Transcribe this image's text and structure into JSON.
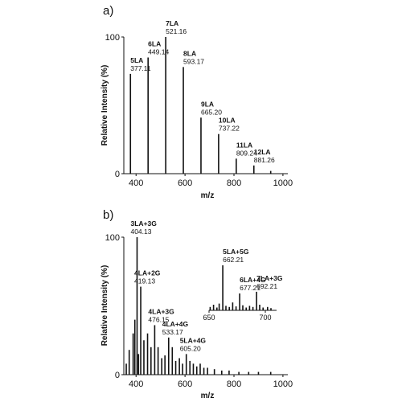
{
  "chart_data": [
    {
      "type": "stem",
      "panel_label": "a)",
      "y_label": "Relative Intensity (%)",
      "x_label": "m/z",
      "x": [
        377.11,
        449.14,
        521.16,
        593.17,
        665.2,
        737.22,
        809.24,
        881.26,
        950
      ],
      "values": [
        73,
        85,
        100,
        78,
        41,
        29,
        11,
        6,
        2
      ],
      "labels": [
        "5LA",
        "6LA",
        "7LA",
        "8LA",
        "9LA",
        "10LA",
        "11LA",
        "12LA",
        null
      ],
      "x_labels": [
        "377.11",
        "449.14",
        "521.16",
        "593.17",
        "665.20",
        "737.22",
        "809.24",
        "881.26",
        null
      ],
      "color": "#111111",
      "xlim": [
        350,
        1020
      ],
      "ylim": [
        0,
        100
      ],
      "xticks": [
        400,
        600,
        800,
        1000
      ],
      "yticks": [
        0,
        100
      ]
    },
    {
      "type": "stem",
      "panel_label": "b)",
      "y_label": "Relative Intensity (%)",
      "x_label": "m/z",
      "x": [
        360,
        372,
        388,
        395,
        404.13,
        410,
        419.13,
        432,
        447,
        461,
        476.15,
        490,
        505,
        518,
        533.17,
        548,
        562,
        577,
        590,
        605.2,
        620,
        634,
        648,
        662,
        677,
        692,
        720,
        750,
        780,
        820,
        860,
        900,
        950
      ],
      "values": [
        8,
        18,
        30,
        40,
        100,
        15,
        64,
        25,
        30,
        20,
        36,
        20,
        12,
        14,
        27,
        20,
        10,
        12,
        8,
        15,
        10,
        8,
        6,
        8,
        5,
        5,
        4,
        3,
        3,
        2,
        2,
        2,
        2
      ],
      "labels": [
        null,
        null,
        null,
        null,
        "3LA+3G",
        null,
        "4LA+2G",
        null,
        null,
        null,
        "4LA+3G",
        null,
        null,
        null,
        "4LA+4G",
        null,
        null,
        null,
        null,
        "5LA+4G",
        null,
        null,
        null,
        null,
        null,
        null,
        null,
        null,
        null,
        null,
        null,
        null,
        null
      ],
      "x_labels": [
        null,
        null,
        null,
        null,
        "404.13",
        null,
        "419.13",
        null,
        null,
        null,
        "476.15",
        null,
        null,
        null,
        "533.17",
        null,
        null,
        null,
        null,
        "605.20",
        null,
        null,
        null,
        null,
        null,
        null,
        null,
        null,
        null,
        null,
        null,
        null,
        null
      ],
      "color": "#111111",
      "xlim": [
        350,
        1020
      ],
      "ylim": [
        0,
        100
      ],
      "xticks": [
        400,
        600,
        800,
        1000
      ],
      "yticks": [
        0,
        100
      ]
    },
    {
      "type": "stem",
      "x": [
        651,
        654,
        657,
        659,
        662.21,
        665,
        668,
        671,
        674,
        677.21,
        680,
        683,
        686,
        689,
        692.21,
        695,
        698,
        702,
        705
      ],
      "values": [
        6,
        10,
        5,
        12,
        80,
        8,
        6,
        14,
        7,
        30,
        9,
        5,
        8,
        6,
        33,
        10,
        5,
        6,
        4
      ],
      "labels": [
        null,
        null,
        null,
        null,
        "5LA+5G",
        null,
        null,
        null,
        null,
        "6LA+4G",
        null,
        null,
        null,
        null,
        "7LA+3G",
        null,
        null,
        null,
        null
      ],
      "x_labels": [
        null,
        null,
        null,
        null,
        "662.21",
        null,
        null,
        null,
        null,
        "677.21",
        null,
        null,
        null,
        null,
        "692.21",
        null,
        null,
        null,
        null
      ],
      "color": "#111111",
      "xlim": [
        650,
        710
      ],
      "ylim": [
        0,
        100
      ],
      "xticks": [
        650,
        700
      ]
    }
  ]
}
